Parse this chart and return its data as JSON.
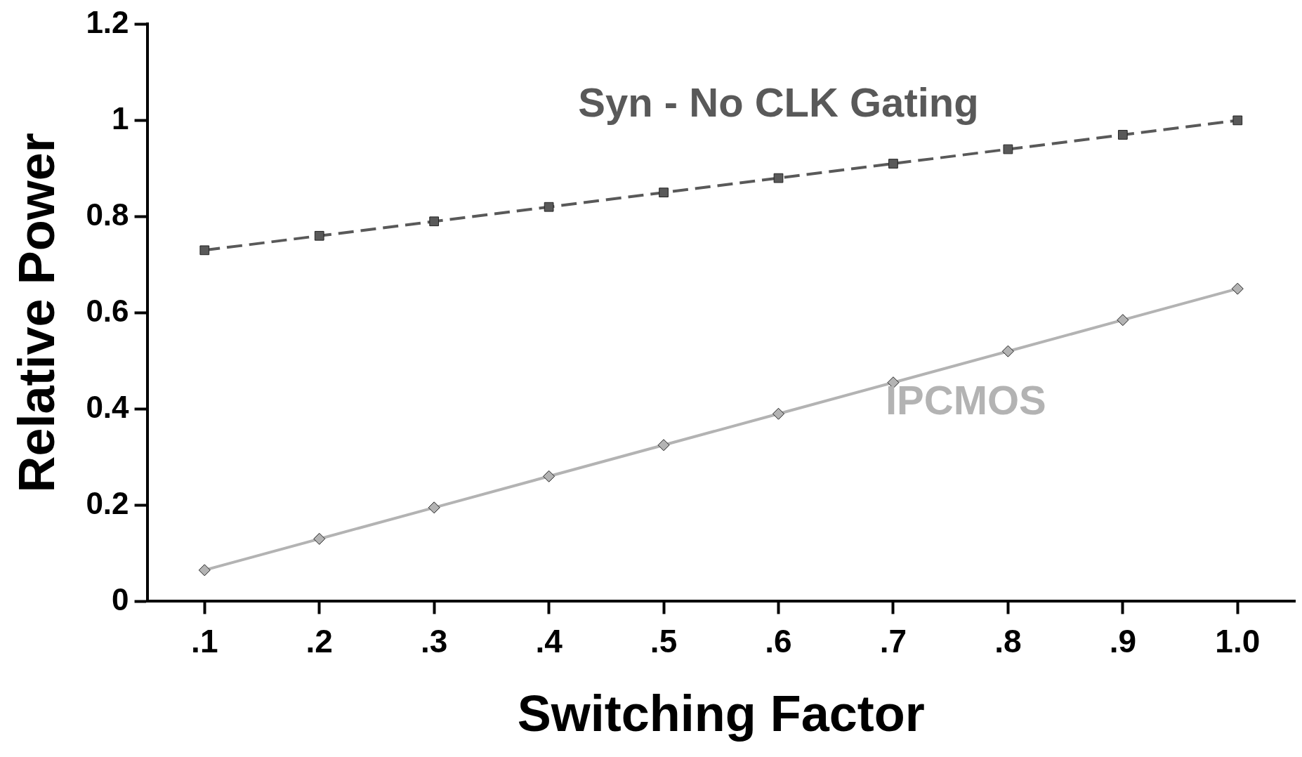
{
  "chart_data": {
    "type": "line",
    "xlabel": "Switching Factor",
    "ylabel": "Relative Power",
    "categories": [
      ".1",
      ".2",
      ".3",
      ".4",
      ".5",
      ".6",
      ".7",
      ".8",
      ".9",
      "1.0"
    ],
    "series": [
      {
        "name": "Syn - No CLK Gating",
        "color": "#595959",
        "marker": "square",
        "line_style": "dashed",
        "values": [
          0.73,
          0.76,
          0.79,
          0.82,
          0.85,
          0.88,
          0.91,
          0.94,
          0.97,
          1.0
        ]
      },
      {
        "name": "IPCMOS",
        "color": "#b3b3b3",
        "marker": "diamond",
        "line_style": "solid",
        "values": [
          0.065,
          0.13,
          0.195,
          0.26,
          0.325,
          0.39,
          0.455,
          0.52,
          0.585,
          0.65
        ]
      }
    ],
    "ylim": [
      0,
      1.2
    ],
    "yticks": [
      0,
      0.2,
      0.4,
      0.6,
      0.8,
      1,
      1.2
    ],
    "grid": false,
    "legend": false
  }
}
